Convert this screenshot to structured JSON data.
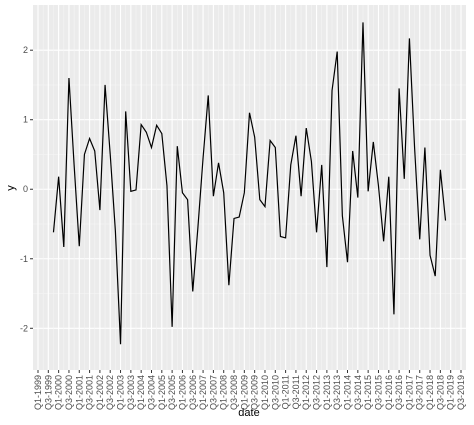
{
  "chart_data": {
    "type": "line",
    "xlabel": "date",
    "ylabel": "y",
    "x": [
      "Q4-1999",
      "Q1-2000",
      "Q2-2000",
      "Q3-2000",
      "Q4-2000",
      "Q1-2001",
      "Q2-2001",
      "Q3-2001",
      "Q4-2001",
      "Q1-2002",
      "Q2-2002",
      "Q3-2002",
      "Q4-2002",
      "Q1-2003",
      "Q2-2003",
      "Q3-2003",
      "Q4-2003",
      "Q1-2004",
      "Q2-2004",
      "Q3-2004",
      "Q4-2004",
      "Q1-2005",
      "Q2-2005",
      "Q3-2005",
      "Q4-2005",
      "Q1-2006",
      "Q2-2006",
      "Q3-2006",
      "Q4-2006",
      "Q1-2007",
      "Q2-2007",
      "Q3-2007",
      "Q4-2007",
      "Q1-2008",
      "Q2-2008",
      "Q3-2008",
      "Q4-2008",
      "Q1-2009",
      "Q2-2009",
      "Q3-2009",
      "Q4-2009",
      "Q1-2010",
      "Q2-2010",
      "Q3-2010",
      "Q4-2010",
      "Q1-2011",
      "Q2-2011",
      "Q3-2011",
      "Q4-2011",
      "Q1-2012",
      "Q2-2012",
      "Q3-2012",
      "Q4-2012",
      "Q1-2013",
      "Q2-2013",
      "Q3-2013",
      "Q4-2013",
      "Q1-2014",
      "Q2-2014",
      "Q3-2014",
      "Q4-2014",
      "Q1-2015",
      "Q2-2015",
      "Q3-2015",
      "Q4-2015",
      "Q1-2016",
      "Q2-2016",
      "Q3-2016",
      "Q4-2016",
      "Q1-2017",
      "Q2-2017",
      "Q3-2017",
      "Q4-2017",
      "Q1-2018",
      "Q2-2018",
      "Q3-2018",
      "Q4-2018"
    ],
    "series": [
      {
        "name": "y",
        "color": "#000000",
        "values": [
          -0.62,
          0.18,
          -0.83,
          1.6,
          0.35,
          -0.82,
          0.5,
          0.73,
          0.55,
          -0.3,
          1.5,
          0.5,
          -0.6,
          -2.23,
          1.12,
          -0.03,
          -0.01,
          0.93,
          0.82,
          0.6,
          0.92,
          0.8,
          0.05,
          -1.98,
          0.62,
          -0.05,
          -0.15,
          -1.47,
          -0.55,
          0.45,
          1.35,
          -0.1,
          0.38,
          -0.05,
          -1.38,
          -0.42,
          -0.4,
          -0.05,
          1.1,
          0.75,
          -0.15,
          -0.25,
          0.7,
          0.6,
          -0.68,
          -0.7,
          0.35,
          0.77,
          -0.1,
          0.88,
          0.4,
          -0.62,
          0.35,
          -1.12,
          1.42,
          1.98,
          -0.38,
          -1.05,
          0.55,
          -0.12,
          2.4,
          -0.03,
          0.68,
          0.05,
          -0.75,
          0.18,
          -1.8,
          1.45,
          0.15,
          2.17,
          0.6,
          -0.72,
          0.6,
          -0.95,
          -1.25,
          0.28,
          -0.45
        ]
      }
    ],
    "xticks": [
      "Q1-1999",
      "Q3-1999",
      "Q1-2000",
      "Q3-2000",
      "Q1-2001",
      "Q3-2001",
      "Q1-2002",
      "Q3-2002",
      "Q1-2003",
      "Q3-2003",
      "Q1-2004",
      "Q3-2004",
      "Q1-2005",
      "Q3-2005",
      "Q1-2006",
      "Q3-2006",
      "Q1-2007",
      "Q3-2007",
      "Q1-2008",
      "Q3-2008",
      "Q1-2009",
      "Q3-2009",
      "Q1-2010",
      "Q3-2010",
      "Q1-2011",
      "Q3-2011",
      "Q1-2012",
      "Q3-2012",
      "Q1-2013",
      "Q3-2013",
      "Q1-2014",
      "Q3-2014",
      "Q1-2015",
      "Q3-2015",
      "Q1-2016",
      "Q3-2016",
      "Q1-2017",
      "Q3-2017",
      "Q1-2018",
      "Q3-2018",
      "Q1-2019",
      "Q3-2019"
    ],
    "ylim": [
      -2.6,
      2.65
    ],
    "yticks": [
      -2,
      -1,
      0,
      1,
      2
    ],
    "grid": true
  }
}
